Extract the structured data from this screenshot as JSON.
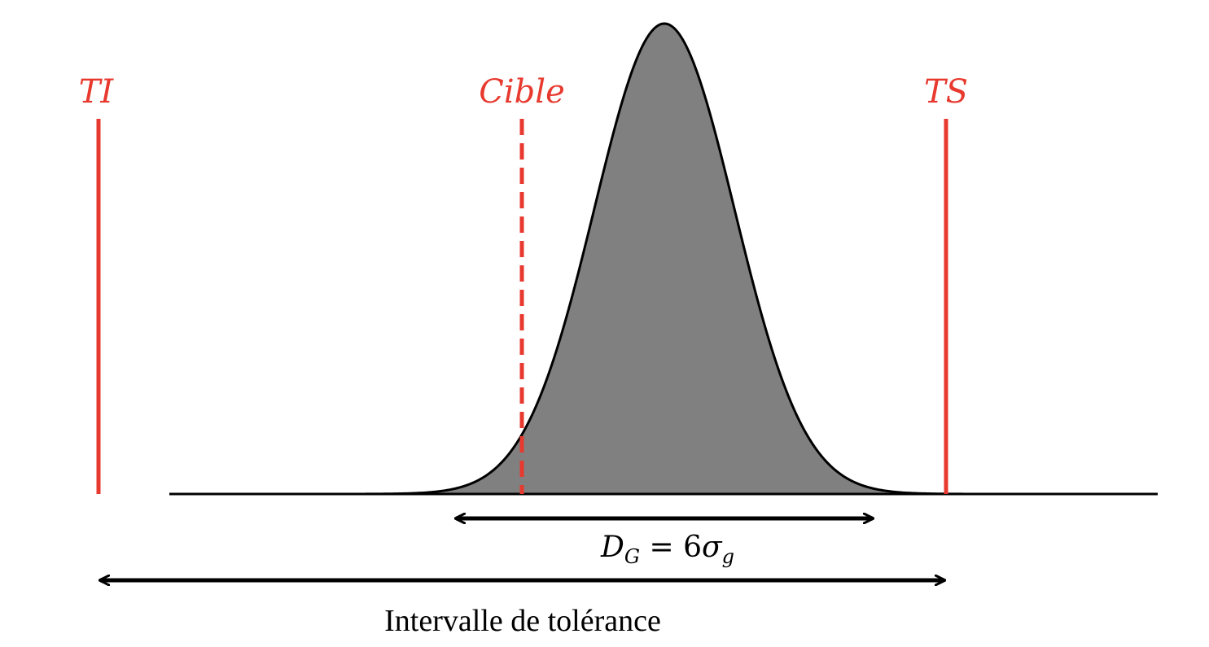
{
  "colors": {
    "limit_lines": "#e8392f",
    "curve_fill": "#808080",
    "curve_stroke": "#000000",
    "axis": "#000000"
  },
  "labels": {
    "lower_limit": "TI",
    "target": "Cible",
    "upper_limit": "TS",
    "dispersion": {
      "symbol": "D",
      "symbol_sub": "G",
      "equals": " = 6",
      "sigma": "σ",
      "sigma_sub": "g"
    },
    "tolerance_interval": "Intervalle de tolérance"
  }
}
